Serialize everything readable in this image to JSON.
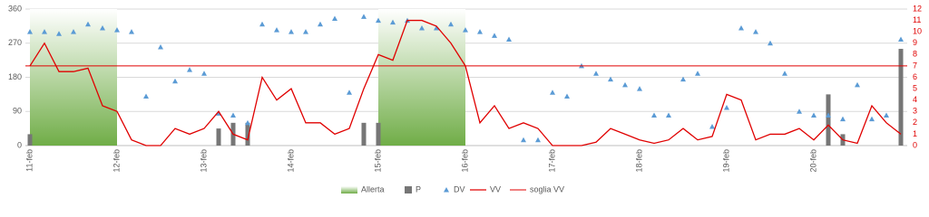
{
  "chart_data": {
    "type": "combo",
    "categories": [
      "11-feb",
      null,
      null,
      null,
      null,
      null,
      "12-feb",
      null,
      null,
      null,
      null,
      null,
      "13-feb",
      null,
      null,
      null,
      null,
      null,
      "14-feb",
      null,
      null,
      null,
      null,
      null,
      "15-feb",
      null,
      null,
      null,
      null,
      null,
      "16-feb",
      null,
      null,
      null,
      null,
      null,
      "17-feb",
      null,
      null,
      null,
      null,
      null,
      "18-feb",
      null,
      null,
      null,
      null,
      null,
      "19-feb",
      null,
      null,
      null,
      null,
      null,
      "20-feb",
      null,
      null,
      null,
      null,
      null,
      null
    ],
    "ylim": [
      0,
      360
    ],
    "yticks": [
      0,
      90,
      180,
      270,
      360
    ],
    "y2lim": [
      0,
      12
    ],
    "y2ticks": [
      0,
      1,
      2,
      3,
      4,
      5,
      6,
      7,
      8,
      9,
      10,
      11,
      12
    ],
    "grid": true,
    "legend": "bottom",
    "series": [
      {
        "name": "Allerta",
        "type": "area",
        "color": "#70ad47",
        "values": [
          360,
          360,
          360,
          360,
          360,
          360,
          360,
          null,
          null,
          null,
          null,
          null,
          null,
          null,
          null,
          null,
          null,
          null,
          null,
          null,
          null,
          null,
          null,
          null,
          360,
          360,
          360,
          360,
          360,
          360,
          360,
          null,
          null,
          null,
          null,
          null,
          null,
          null,
          null,
          null,
          null,
          null,
          null,
          null,
          null,
          null,
          null,
          null,
          null,
          null,
          null,
          null,
          null,
          null,
          null,
          null,
          null,
          null,
          null,
          null,
          null
        ]
      },
      {
        "name": "P",
        "type": "bar",
        "axis": "y2",
        "color": "#767676",
        "values": [
          1,
          0,
          0,
          0,
          0,
          0,
          0,
          0,
          0,
          0,
          0,
          0,
          0,
          1.5,
          2,
          2,
          0,
          0,
          0,
          0,
          0,
          0,
          0,
          2,
          2,
          0,
          0,
          0,
          0,
          0,
          0,
          0,
          0,
          0,
          0,
          0,
          0,
          0,
          0,
          0,
          0,
          0,
          0,
          0,
          0,
          0,
          0,
          0,
          0,
          0,
          0,
          0,
          0,
          0,
          0,
          4.5,
          1,
          0,
          0,
          0,
          8.5
        ]
      },
      {
        "name": "DV",
        "type": "scatter",
        "color": "#5b9bd5",
        "values": [
          300,
          300,
          295,
          300,
          320,
          310,
          305,
          300,
          130,
          260,
          170,
          200,
          190,
          85,
          80,
          60,
          320,
          305,
          300,
          300,
          320,
          335,
          140,
          340,
          330,
          325,
          330,
          310,
          310,
          320,
          305,
          300,
          290,
          280,
          15,
          15,
          140,
          130,
          210,
          190,
          175,
          160,
          150,
          80,
          80,
          175,
          190,
          50,
          100,
          310,
          300,
          270,
          190,
          90,
          80,
          80,
          70,
          160,
          70,
          80,
          280
        ]
      },
      {
        "name": "VV",
        "type": "line",
        "axis": "y2",
        "color": "#e00000",
        "values": [
          7,
          9,
          6.5,
          6.5,
          6.8,
          3.5,
          3,
          0.5,
          0,
          0,
          1.5,
          1,
          1.5,
          3,
          1,
          0.5,
          6,
          4,
          5,
          2,
          2,
          1,
          1.5,
          5,
          8,
          7.5,
          11,
          11,
          10.5,
          9,
          7,
          2,
          3.5,
          1.5,
          2,
          1.5,
          0,
          0,
          0,
          0.3,
          1.5,
          1,
          0.5,
          0.2,
          0.5,
          1.5,
          0.5,
          0.8,
          4.5,
          4,
          0.5,
          1,
          1,
          1.5,
          0.5,
          1.8,
          0.5,
          0.2,
          3.5,
          2,
          1
        ]
      },
      {
        "name": "soglia VV",
        "type": "hline",
        "axis": "y2",
        "color": "#e00000",
        "value": 7
      }
    ]
  }
}
